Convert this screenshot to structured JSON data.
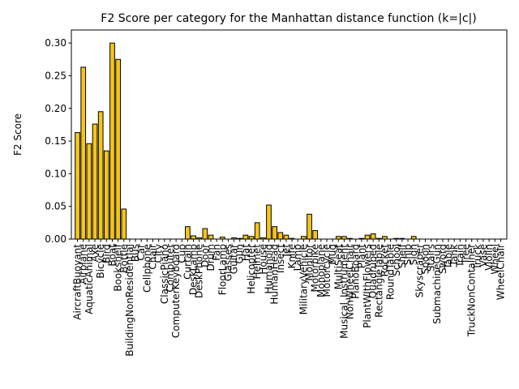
{
  "chart_data": {
    "type": "bar",
    "title": "F2 Score per category for the Manhattan distance function (k=|c|)",
    "xlabel": "",
    "ylabel": "F2 Score",
    "ylim": [
      0,
      0.32
    ],
    "yticks": [
      "0.00",
      "0.05",
      "0.10",
      "0.15",
      "0.20",
      "0.25",
      "0.30"
    ],
    "grid": false,
    "bar_color": "#f5c518",
    "edge_color": "#000000",
    "categories": [
      "AircraftBuoyant",
      "Airplane",
      "AquaticAnimal",
      "Axe",
      "Bicycle",
      "Bird",
      "Boat",
      "Bookshelf",
      "Bottle",
      "BuildingNonResidential",
      "Bus",
      "Car",
      "Cellphone",
      "Chair",
      "City",
      "ClassicPiano",
      "Computer",
      "ComputerKeyboard",
      "Cup",
      "Curtain",
      "DeskLamp",
      "DeskPhone",
      "Door",
      "Drum",
      "Fan",
      "FloorLamp",
      "Glasses",
      "Guitar",
      "Gun",
      "Hat",
      "Helicopter",
      "Helmet",
      "House",
      "Humanoid",
      "HumanHead",
      "Insect",
      "Jet",
      "Knife",
      "Lamp",
      "MilitaryVehicle",
      "Monitor",
      "Motorbike",
      "Monoplane",
      "Motorcycle",
      "Mug",
      "MultiSeat",
      "Musical_Instrument",
      "NonWheelChair",
      "PianoBoard",
      "Plant",
      "PlantWIthFlowers",
      "Quadruped",
      "RectangleTable",
      "Rocket",
      "RoundTable",
      "School",
      "Shelf",
      "Ship",
      "Sign",
      "Skyscraper",
      "Spoon",
      "Stairs",
      "SubmachineGun",
      "Sword",
      "Table",
      "Tank",
      "Train",
      "Tree",
      "TruckNonContainer",
      "Truck",
      "Vase",
      "Violin",
      "Wheel",
      "WheelChair"
    ],
    "values": [
      0.163,
      0.263,
      0.146,
      0.176,
      0.195,
      0.135,
      0.3,
      0.275,
      0.046,
      0,
      0,
      0,
      0,
      0,
      0,
      0,
      0,
      0,
      0,
      0.019,
      0.005,
      0.002,
      0.016,
      0.006,
      0,
      0.003,
      0,
      0.002,
      0.001,
      0.006,
      0.004,
      0.025,
      0.002,
      0.052,
      0.019,
      0.01,
      0.006,
      0.001,
      0,
      0.004,
      0.038,
      0.013,
      0,
      0,
      0,
      0.004,
      0.004,
      0.001,
      0,
      0.001,
      0.006,
      0.008,
      0.001,
      0.004,
      0,
      0.001,
      0.001,
      0,
      0.004,
      0,
      0,
      0,
      0,
      0,
      0,
      0,
      0,
      0,
      0,
      0,
      0,
      0,
      0,
      0
    ]
  }
}
